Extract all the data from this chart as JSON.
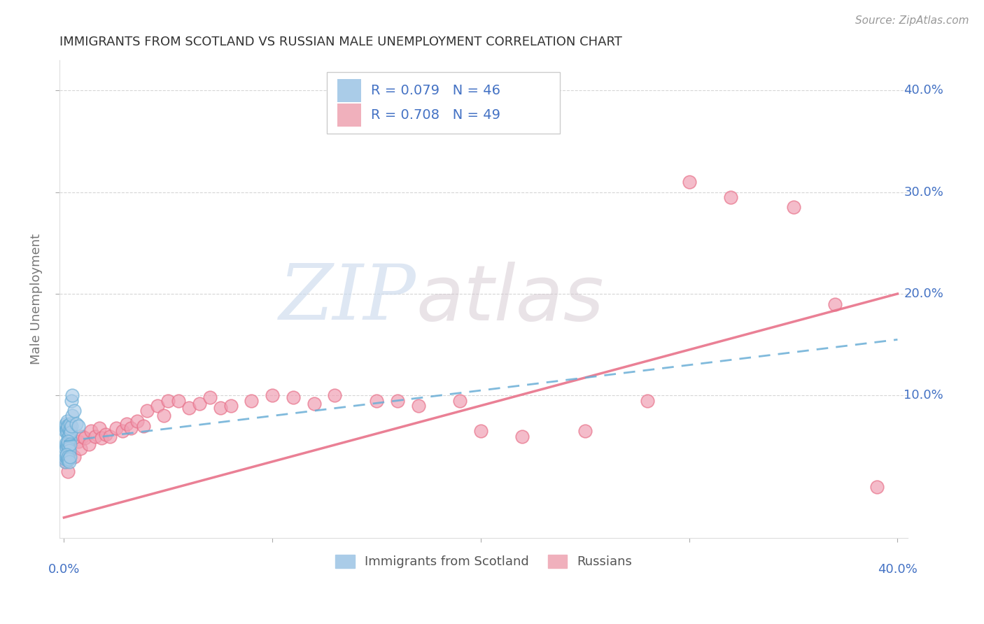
{
  "title": "IMMIGRANTS FROM SCOTLAND VS RUSSIAN MALE UNEMPLOYMENT CORRELATION CHART",
  "source": "Source: ZipAtlas.com",
  "ylabel": "Male Unemployment",
  "ytick_labels": [
    "10.0%",
    "20.0%",
    "30.0%",
    "40.0%"
  ],
  "ytick_values": [
    0.1,
    0.2,
    0.3,
    0.4
  ],
  "xtick_labels_show": [
    "0.0%",
    "40.0%"
  ],
  "xlim": [
    -0.002,
    0.405
  ],
  "ylim": [
    -0.04,
    0.43
  ],
  "legend_label1": "Immigrants from Scotland",
  "legend_label2": "Russians",
  "legend_r1": "R = 0.079",
  "legend_n1": "N = 46",
  "legend_r2": "R = 0.708",
  "legend_n2": "N = 49",
  "scotland_color": "#6aaed6",
  "scotland_color_light": "#aacce8",
  "russia_color": "#e8728a",
  "russia_color_light": "#f0a0b4",
  "watermark_zip": "ZIP",
  "watermark_atlas": "atlas",
  "background_color": "#ffffff",
  "grid_color": "#cccccc",
  "title_color": "#333333",
  "axis_label_color": "#4472c4",
  "scotland_x": [
    0.0005,
    0.0008,
    0.001,
    0.001,
    0.0012,
    0.0015,
    0.0015,
    0.0018,
    0.002,
    0.002,
    0.002,
    0.0022,
    0.0025,
    0.0025,
    0.0028,
    0.003,
    0.003,
    0.003,
    0.0032,
    0.0035,
    0.0005,
    0.0008,
    0.001,
    0.0012,
    0.0015,
    0.0018,
    0.002,
    0.0022,
    0.0025,
    0.003,
    0.0005,
    0.0007,
    0.001,
    0.0012,
    0.0015,
    0.0018,
    0.002,
    0.0022,
    0.0025,
    0.003,
    0.0035,
    0.004,
    0.004,
    0.005,
    0.006,
    0.007
  ],
  "scotland_y": [
    0.065,
    0.068,
    0.07,
    0.072,
    0.066,
    0.063,
    0.075,
    0.068,
    0.071,
    0.069,
    0.058,
    0.055,
    0.06,
    0.062,
    0.057,
    0.065,
    0.068,
    0.072,
    0.064,
    0.07,
    0.048,
    0.051,
    0.053,
    0.049,
    0.052,
    0.05,
    0.055,
    0.048,
    0.046,
    0.052,
    0.035,
    0.038,
    0.04,
    0.042,
    0.038,
    0.036,
    0.04,
    0.038,
    0.035,
    0.04,
    0.095,
    0.1,
    0.08,
    0.085,
    0.072,
    0.07
  ],
  "russia_x": [
    0.001,
    0.002,
    0.003,
    0.005,
    0.007,
    0.008,
    0.009,
    0.01,
    0.012,
    0.013,
    0.015,
    0.017,
    0.018,
    0.02,
    0.022,
    0.025,
    0.028,
    0.03,
    0.032,
    0.035,
    0.038,
    0.04,
    0.045,
    0.048,
    0.05,
    0.055,
    0.06,
    0.065,
    0.07,
    0.075,
    0.08,
    0.09,
    0.1,
    0.11,
    0.12,
    0.13,
    0.15,
    0.16,
    0.17,
    0.19,
    0.2,
    0.22,
    0.25,
    0.28,
    0.3,
    0.32,
    0.35,
    0.37,
    0.39
  ],
  "russia_y": [
    0.035,
    0.025,
    0.045,
    0.04,
    0.055,
    0.048,
    0.06,
    0.058,
    0.052,
    0.065,
    0.06,
    0.068,
    0.058,
    0.062,
    0.06,
    0.068,
    0.065,
    0.072,
    0.068,
    0.075,
    0.07,
    0.085,
    0.09,
    0.08,
    0.095,
    0.095,
    0.088,
    0.092,
    0.098,
    0.088,
    0.09,
    0.095,
    0.1,
    0.098,
    0.092,
    0.1,
    0.095,
    0.095,
    0.09,
    0.095,
    0.065,
    0.06,
    0.065,
    0.095,
    0.31,
    0.295,
    0.285,
    0.19,
    0.01
  ],
  "russia_trendline_x": [
    0.0,
    0.4
  ],
  "russia_trendline_y": [
    -0.02,
    0.2
  ],
  "scotland_trendline_x": [
    0.0,
    0.4
  ],
  "scotland_trendline_y": [
    0.055,
    0.155
  ]
}
